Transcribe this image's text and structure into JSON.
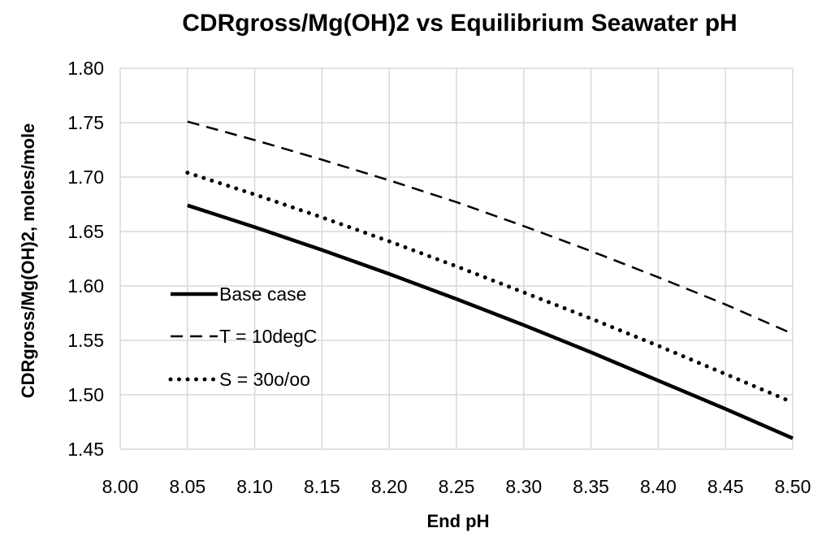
{
  "chart_data": {
    "type": "line",
    "title": "CDRgross/Mg(OH)2 vs Equilibrium Seawater pH",
    "xlabel": "End pH",
    "ylabel": "CDRgross/Mg(OH)2, moles/mole",
    "xlim": [
      8.0,
      8.5
    ],
    "ylim": [
      1.45,
      1.8
    ],
    "x_ticks": [
      "8.00",
      "8.05",
      "8.10",
      "8.15",
      "8.20",
      "8.25",
      "8.30",
      "8.35",
      "8.40",
      "8.45",
      "8.50"
    ],
    "y_ticks": [
      "1.45",
      "1.50",
      "1.55",
      "1.60",
      "1.65",
      "1.70",
      "1.75",
      "1.80"
    ],
    "grid": true,
    "legend_position": "left-center",
    "series": [
      {
        "name": "Base case",
        "style": "solid",
        "color": "#000000",
        "points": [
          [
            8.05,
            1.674
          ],
          [
            8.1,
            1.654
          ],
          [
            8.15,
            1.633
          ],
          [
            8.2,
            1.611
          ],
          [
            8.25,
            1.588
          ],
          [
            8.3,
            1.564
          ],
          [
            8.35,
            1.539
          ],
          [
            8.4,
            1.513
          ],
          [
            8.45,
            1.487
          ],
          [
            8.5,
            1.46
          ]
        ]
      },
      {
        "name": "T = 10degC",
        "style": "dashed",
        "color": "#000000",
        "points": [
          [
            8.05,
            1.751
          ],
          [
            8.1,
            1.734
          ],
          [
            8.15,
            1.716
          ],
          [
            8.2,
            1.697
          ],
          [
            8.25,
            1.677
          ],
          [
            8.3,
            1.655
          ],
          [
            8.35,
            1.632
          ],
          [
            8.4,
            1.608
          ],
          [
            8.45,
            1.583
          ],
          [
            8.5,
            1.556
          ]
        ]
      },
      {
        "name": "S = 30o/oo",
        "style": "dotted",
        "color": "#000000",
        "points": [
          [
            8.05,
            1.704
          ],
          [
            8.1,
            1.684
          ],
          [
            8.15,
            1.663
          ],
          [
            8.2,
            1.641
          ],
          [
            8.25,
            1.618
          ],
          [
            8.3,
            1.594
          ],
          [
            8.35,
            1.57
          ],
          [
            8.4,
            1.545
          ],
          [
            8.45,
            1.519
          ],
          [
            8.5,
            1.493
          ]
        ]
      }
    ]
  }
}
